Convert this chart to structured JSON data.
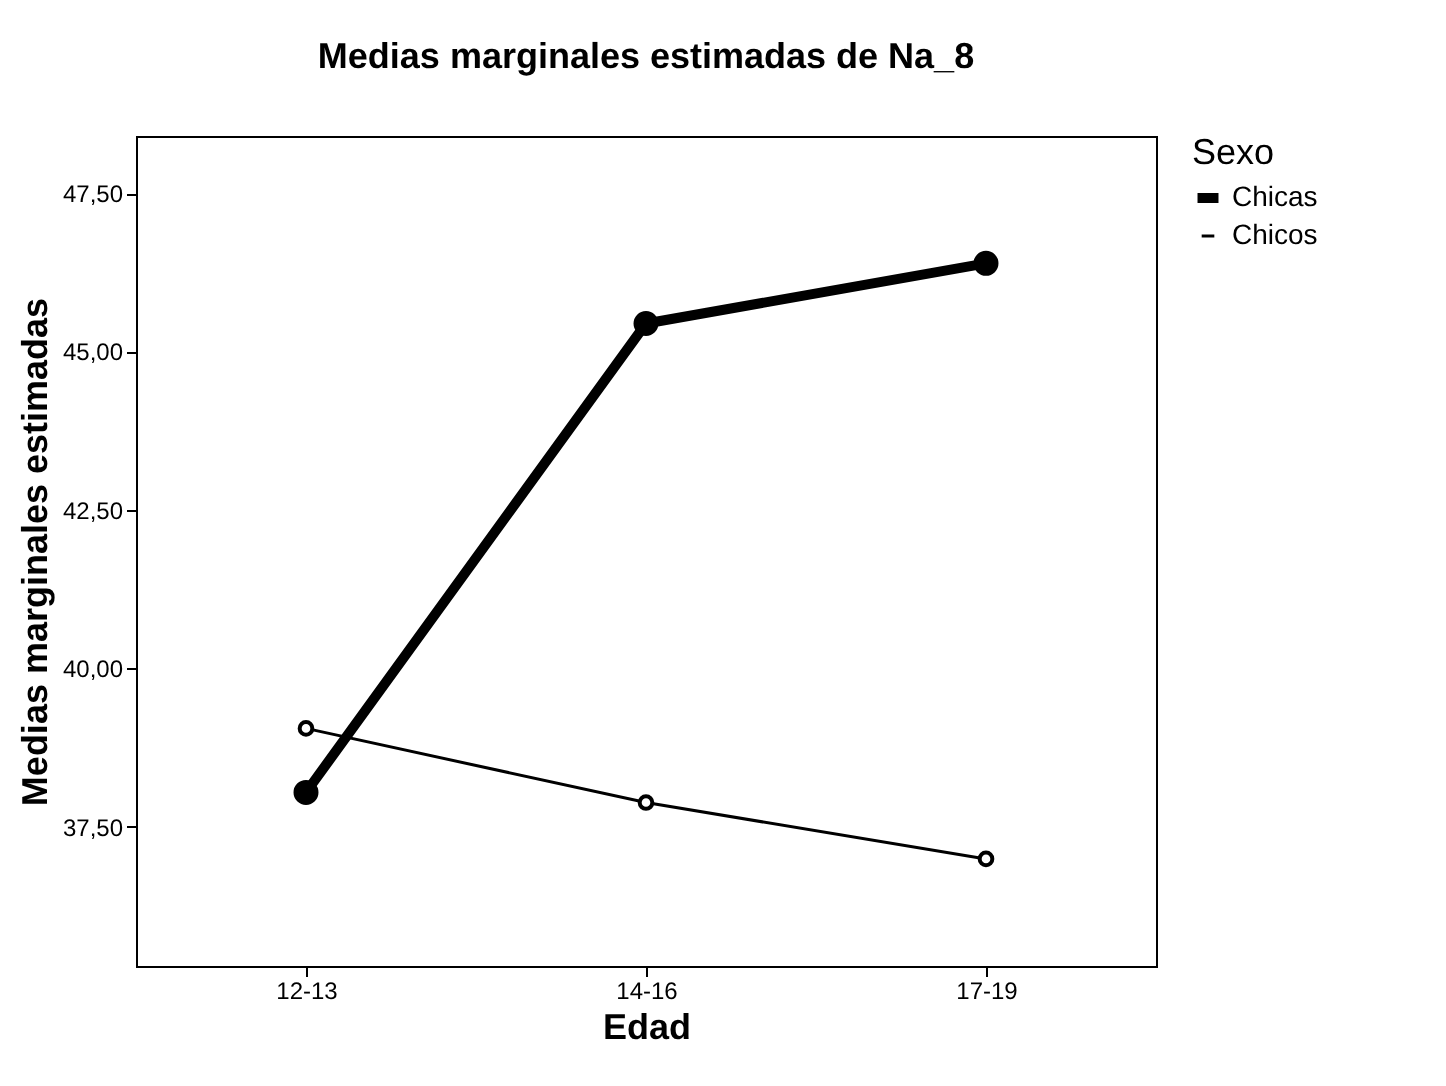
{
  "chart_data": {
    "type": "line",
    "title": "Medias marginales estimadas de Na_8",
    "xlabel": "Edad",
    "ylabel": "Medias marginales estimadas",
    "legend_title": "Sexo",
    "categories": [
      "12-13",
      "14-16",
      "17-19"
    ],
    "series": [
      {
        "name": "Chicas",
        "color": "#000000",
        "values": [
          38.04,
          45.44,
          46.39
        ]
      },
      {
        "name": "Chicos",
        "color": "#000000",
        "values": [
          39.05,
          37.88,
          36.99
        ]
      }
    ],
    "ylim": [
      35.3,
      48.4
    ],
    "yticks": [
      {
        "value": 37.5,
        "label": "37,50"
      },
      {
        "value": 40,
        "label": "40,00"
      },
      {
        "value": 42.5,
        "label": "42,50"
      },
      {
        "value": 45,
        "label": "45,00"
      },
      {
        "value": 47.5,
        "label": "47,50"
      }
    ],
    "grid": false,
    "legend": "top right",
    "marker": "circle",
    "line_style": "solid"
  }
}
